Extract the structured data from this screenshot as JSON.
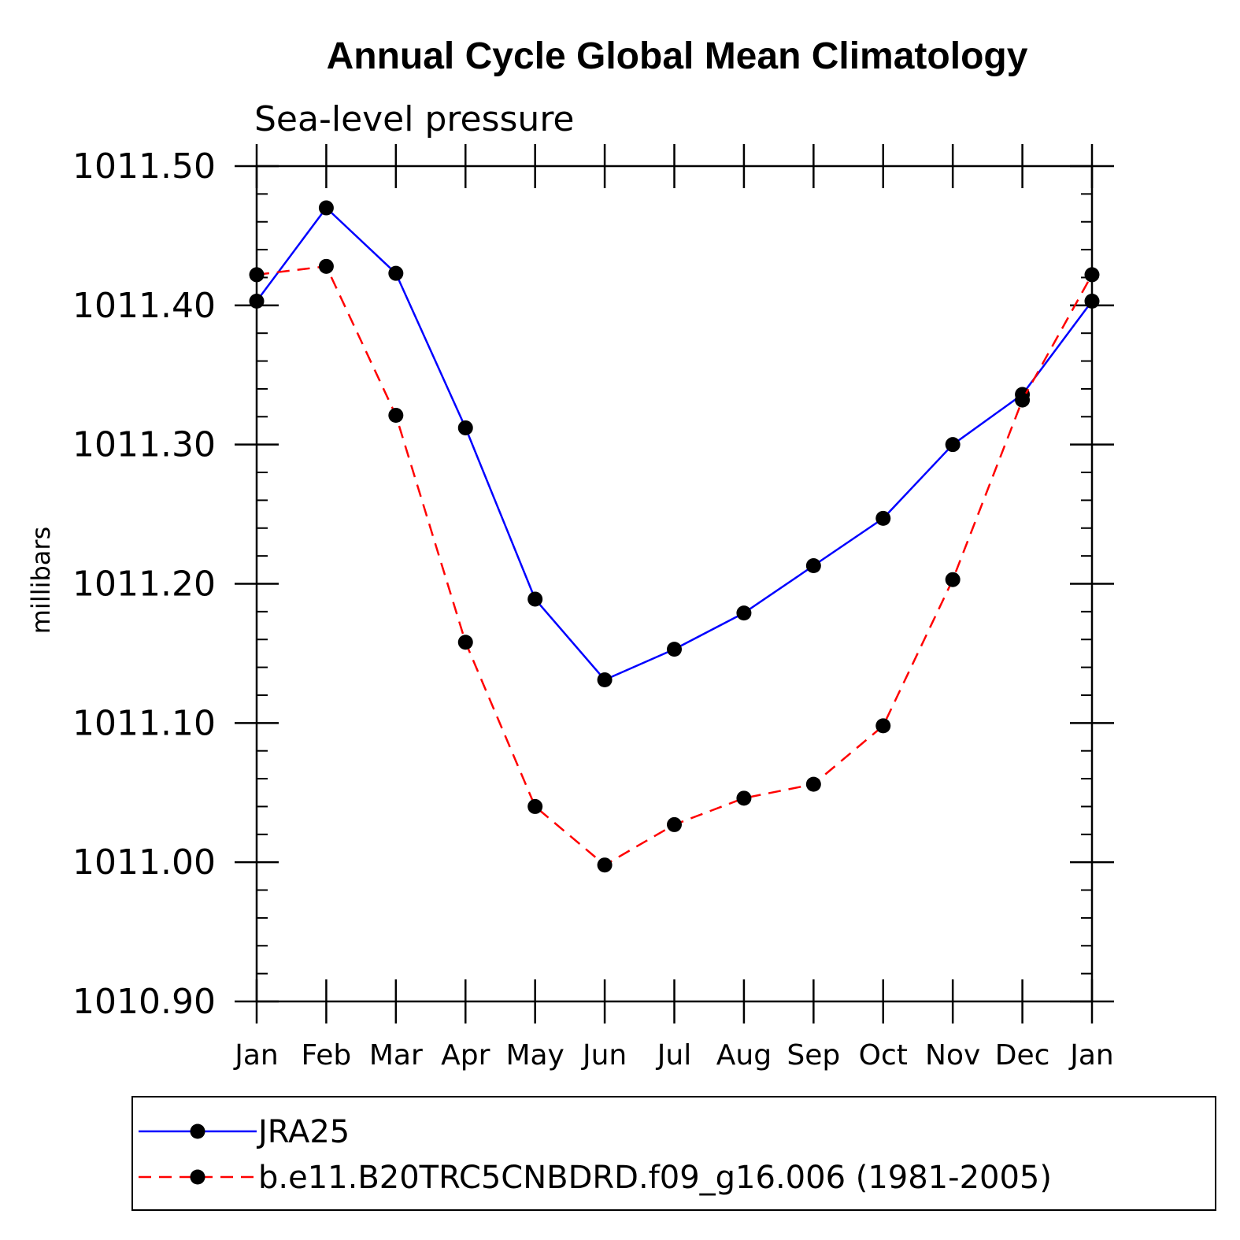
{
  "chart_data": {
    "type": "line",
    "title": "Annual Cycle Global Mean Climatology",
    "subtitle": "Sea-level pressure",
    "ylabel": "millibars",
    "xlabel": "",
    "categories": [
      "Jan",
      "Feb",
      "Mar",
      "Apr",
      "May",
      "Jun",
      "Jul",
      "Aug",
      "Sep",
      "Oct",
      "Nov",
      "Dec",
      "Jan"
    ],
    "ylim": [
      1010.9,
      1011.5
    ],
    "yticks": [
      "1010.90",
      "1011.00",
      "1011.10",
      "1011.20",
      "1011.30",
      "1011.40",
      "1011.50"
    ],
    "ytick_values": [
      1010.9,
      1011.0,
      1011.1,
      1011.2,
      1011.3,
      1011.4,
      1011.5
    ],
    "grid": false,
    "legend_position": "bottom",
    "series": [
      {
        "name": "JRA25",
        "color": "#0000ff",
        "dash": "solid",
        "marker": "filled-circle",
        "values": [
          1011.403,
          1011.47,
          1011.423,
          1011.312,
          1011.189,
          1011.131,
          1011.153,
          1011.179,
          1011.213,
          1011.247,
          1011.3,
          1011.336,
          1011.403
        ]
      },
      {
        "name": "b.e11.B20TRC5CNBDRD.f09_g16.006 (1981-2005)",
        "color": "#ff0000",
        "dash": "dashed",
        "marker": "filled-circle",
        "values": [
          1011.422,
          1011.428,
          1011.321,
          1011.158,
          1011.04,
          1010.998,
          1011.027,
          1011.046,
          1011.056,
          1011.098,
          1011.203,
          1011.332,
          1011.422
        ]
      }
    ]
  }
}
